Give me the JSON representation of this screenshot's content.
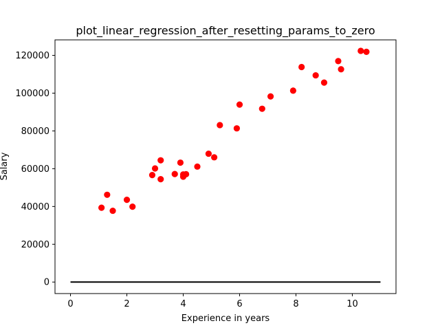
{
  "chart_data": {
    "type": "scatter",
    "title": "plot_linear_regression_after_resetting_params_to_zero",
    "xlabel": "Experience in years",
    "ylabel": "Salary",
    "xlim": [
      -0.55,
      11.55
    ],
    "ylim": [
      -6100,
      128200
    ],
    "xticks": [
      0,
      2,
      4,
      6,
      8,
      10
    ],
    "yticks": [
      0,
      20000,
      40000,
      60000,
      80000,
      100000,
      120000
    ],
    "grid": false,
    "series": [
      {
        "kind": "scatter",
        "color": "#ff0000",
        "points": [
          [
            1.1,
            39343
          ],
          [
            1.3,
            46205
          ],
          [
            1.5,
            37731
          ],
          [
            2.0,
            43525
          ],
          [
            2.2,
            39891
          ],
          [
            2.9,
            56642
          ],
          [
            3.0,
            60150
          ],
          [
            3.2,
            54445
          ],
          [
            3.2,
            64445
          ],
          [
            3.7,
            57189
          ],
          [
            3.9,
            63218
          ],
          [
            4.0,
            55794
          ],
          [
            4.0,
            56957
          ],
          [
            4.1,
            57081
          ],
          [
            4.5,
            61111
          ],
          [
            4.9,
            67938
          ],
          [
            5.1,
            66029
          ],
          [
            5.3,
            83088
          ],
          [
            5.9,
            81363
          ],
          [
            6.0,
            93940
          ],
          [
            6.8,
            91738
          ],
          [
            7.1,
            98273
          ],
          [
            7.9,
            101302
          ],
          [
            8.2,
            113812
          ],
          [
            8.7,
            109431
          ],
          [
            9.0,
            105582
          ],
          [
            9.5,
            116969
          ],
          [
            9.6,
            112635
          ],
          [
            10.3,
            122391
          ],
          [
            10.5,
            121872
          ]
        ]
      },
      {
        "kind": "line",
        "color": "#000000",
        "points": [
          [
            0,
            0
          ],
          [
            11,
            0
          ]
        ]
      }
    ]
  }
}
